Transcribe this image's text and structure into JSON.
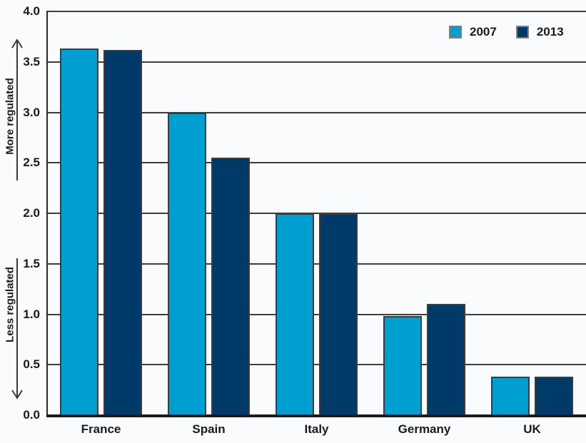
{
  "colors": {
    "background": "#FAFBFD",
    "bar_2007": "#009FD1",
    "bar_2013": "#003A68",
    "bar_border": "#3C3C3C",
    "gridline": "#3D3D3D",
    "axis": "#1C1C1C",
    "text": "#1A1A1A",
    "legend_swatch_border": "#7F7F7F"
  },
  "legend": {
    "items": [
      {
        "label": "2007",
        "color": "#009FD1"
      },
      {
        "label": "2013",
        "color": "#003A68"
      }
    ]
  },
  "y_axis": {
    "upper_annotation": "More regulated",
    "lower_annotation": "Less regulated"
  },
  "chart_data": {
    "type": "bar",
    "categories": [
      "France",
      "Spain",
      "Italy",
      "Germany",
      "UK"
    ],
    "series": [
      {
        "name": "2007",
        "values": [
          3.63,
          3.0,
          2.0,
          0.98,
          0.38
        ]
      },
      {
        "name": "2013",
        "values": [
          3.62,
          2.55,
          2.0,
          1.1,
          0.38
        ]
      }
    ],
    "title": "",
    "xlabel": "",
    "ylabel": "",
    "ylim": [
      0.0,
      4.0
    ],
    "ytick_step": 0.5,
    "yticks": [
      "4.0",
      "3.5",
      "3.0",
      "2.5",
      "2.0",
      "1.5",
      "1.0",
      "0.5",
      "0.0"
    ],
    "grid": true,
    "gridlines_full_width": true,
    "legend_position": "top-right"
  }
}
